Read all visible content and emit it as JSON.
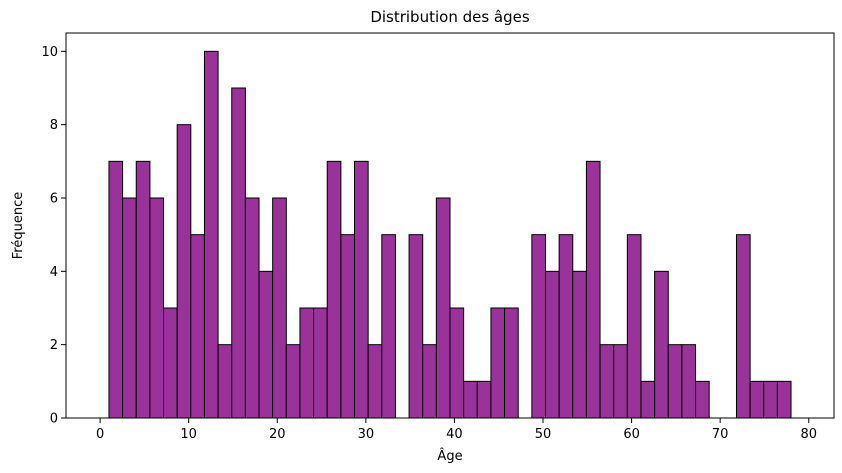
{
  "chart_data": {
    "type": "bar",
    "title": "Distribution des âges",
    "xlabel": "Âge",
    "ylabel": "Fréquence",
    "bar_color": "#993399",
    "edge_color": "#000000",
    "xlim": [
      -3.85,
      82.85
    ],
    "ylim": [
      0,
      10.5
    ],
    "xticks": [
      0,
      10,
      20,
      30,
      40,
      50,
      60,
      70,
      80
    ],
    "yticks": [
      0,
      2,
      4,
      6,
      8,
      10
    ],
    "bin_start": 1,
    "bin_width": 1.54,
    "values": [
      7,
      6,
      7,
      6,
      3,
      8,
      5,
      10,
      2,
      9,
      6,
      4,
      6,
      2,
      3,
      3,
      7,
      5,
      7,
      2,
      5,
      0,
      5,
      2,
      6,
      3,
      1,
      1,
      3,
      3,
      0,
      5,
      4,
      5,
      4,
      7,
      2,
      2,
      5,
      1,
      4,
      2,
      2,
      1,
      0,
      0,
      5,
      1,
      1,
      1
    ],
    "grid": false
  }
}
